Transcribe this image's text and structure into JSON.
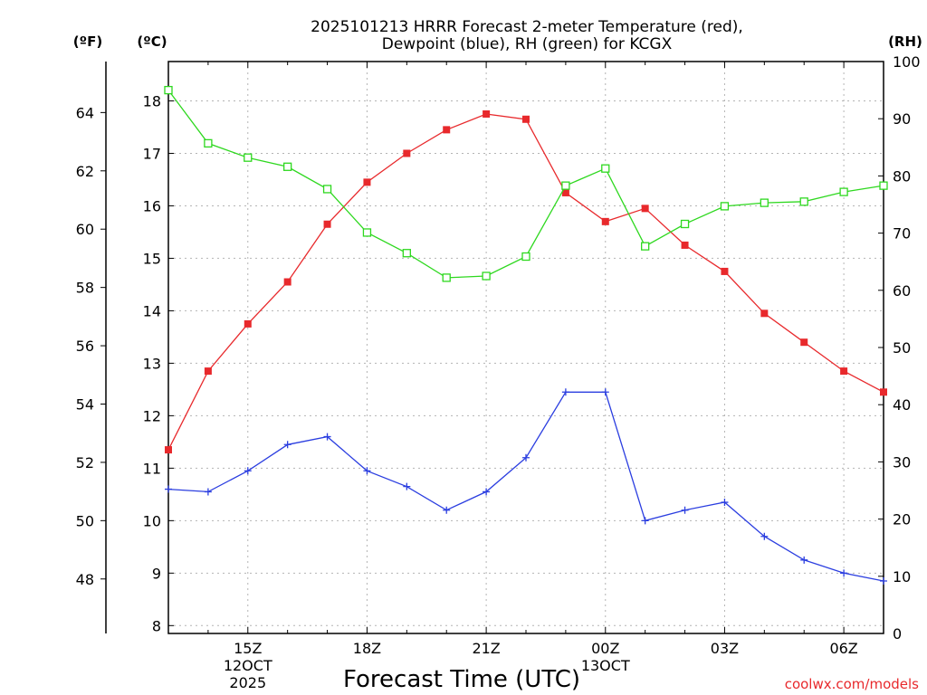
{
  "chart_data": {
    "type": "line",
    "title_lines": [
      "2025101213 HRRR Forecast 2-meter Temperature (red),",
      "Dewpoint (blue), RH (green) for KCGX"
    ],
    "xlabel": "Forecast Time (UTC)",
    "x_ticks": [
      "15Z",
      "18Z",
      "21Z",
      "00Z",
      "03Z",
      "06Z"
    ],
    "x_date_labels": [
      {
        "at": "15Z",
        "lines": [
          "12OCT",
          "2025"
        ]
      },
      {
        "at": "00Z",
        "lines": [
          "13OCT"
        ]
      }
    ],
    "x_hours": [
      13,
      14,
      15,
      16,
      17,
      18,
      19,
      20,
      21,
      22,
      23,
      24,
      25,
      26,
      27,
      28,
      29,
      30,
      31
    ],
    "axes": {
      "fahrenheit": {
        "label": "(ºF)",
        "ticks": [
          48,
          50,
          52,
          54,
          56,
          58,
          60,
          62,
          64
        ]
      },
      "celsius": {
        "label": "(ºC)",
        "ylim": [
          7.85,
          18.75
        ],
        "ticks": [
          8,
          9,
          10,
          11,
          12,
          13,
          14,
          15,
          16,
          17,
          18
        ]
      },
      "rh": {
        "label": "(RH)",
        "ylim": [
          0,
          100
        ],
        "ticks": [
          0,
          10,
          20,
          30,
          40,
          50,
          60,
          70,
          80,
          90,
          100
        ]
      }
    },
    "series": [
      {
        "name": "2-meter Temperature",
        "color": "#e8292c",
        "axis": "celsius",
        "marker": "filled-square",
        "values": [
          11.35,
          12.85,
          13.75,
          14.55,
          15.65,
          16.45,
          17.0,
          17.45,
          17.75,
          17.65,
          16.25,
          15.7,
          15.95,
          15.25,
          14.75,
          13.95,
          13.4,
          12.85,
          12.45
        ]
      },
      {
        "name": "Dewpoint",
        "color": "#2b3ee0",
        "axis": "celsius",
        "marker": "plus",
        "values": [
          10.6,
          10.55,
          10.95,
          11.45,
          11.6,
          10.95,
          10.65,
          10.2,
          10.55,
          11.2,
          12.45,
          12.45,
          10.0,
          10.2,
          10.35,
          9.7,
          9.25,
          9.0,
          8.85
        ]
      },
      {
        "name": "RH",
        "color": "#2ed81f",
        "axis": "rh",
        "marker": "open-square",
        "values": [
          95,
          85.7,
          83.2,
          81.6,
          77.7,
          70.1,
          66.5,
          62.2,
          62.5,
          65.9,
          78.3,
          81.3,
          67.7,
          71.6,
          74.7,
          75.3,
          75.5,
          77.2,
          78.3
        ]
      }
    ],
    "grid": true
  },
  "credit": "coolwx.com/models"
}
